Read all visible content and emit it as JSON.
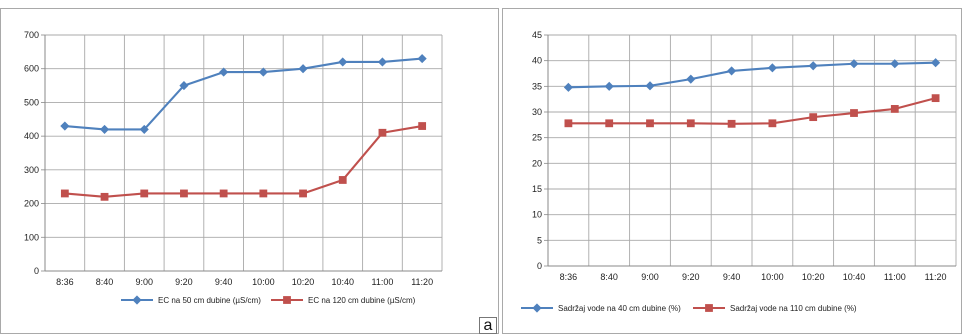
{
  "panel_corner_label": "a",
  "chart_data": [
    {
      "type": "line",
      "categories": [
        "8:36",
        "8:40",
        "9:00",
        "9:20",
        "9:40",
        "10:00",
        "10:20",
        "10:40",
        "11:00",
        "11:20"
      ],
      "series": [
        {
          "name": "EC na 50 cm dubine (µS/cm)",
          "values": [
            430,
            420,
            420,
            550,
            590,
            590,
            600,
            620,
            620,
            630
          ],
          "color": "#4F81BD",
          "marker": "diamond"
        },
        {
          "name": "EC na 120 cm dubine (µS/cm)",
          "values": [
            230,
            220,
            230,
            230,
            230,
            230,
            230,
            270,
            410,
            430
          ],
          "color": "#C0504D",
          "marker": "square"
        }
      ],
      "y_ticks": [
        "0",
        "100",
        "200",
        "300",
        "400",
        "500",
        "600",
        "700"
      ],
      "ylim": [
        0,
        700
      ],
      "grid": true,
      "legend_position": "bottom"
    },
    {
      "type": "line",
      "categories": [
        "8:36",
        "8:40",
        "9:00",
        "9:20",
        "9:40",
        "10:00",
        "10:20",
        "10:40",
        "11:00",
        "11:20"
      ],
      "series": [
        {
          "name": "Sadržaj vode na 40 cm dubine (%)",
          "values": [
            34.8,
            35.0,
            35.1,
            36.4,
            38.0,
            38.6,
            39.0,
            39.4,
            39.4,
            39.6
          ],
          "color": "#4F81BD",
          "marker": "diamond"
        },
        {
          "name": "Sadržaj vode na 110 cm dubine (%)",
          "values": [
            27.8,
            27.8,
            27.8,
            27.8,
            27.7,
            27.8,
            29.0,
            29.8,
            30.6,
            32.7
          ],
          "color": "#C0504D",
          "marker": "square"
        }
      ],
      "y_ticks": [
        "0",
        "5",
        "10",
        "15",
        "20",
        "25",
        "30",
        "35",
        "40",
        "45"
      ],
      "ylim": [
        0,
        45
      ],
      "grid": true,
      "legend_position": "bottom"
    }
  ]
}
